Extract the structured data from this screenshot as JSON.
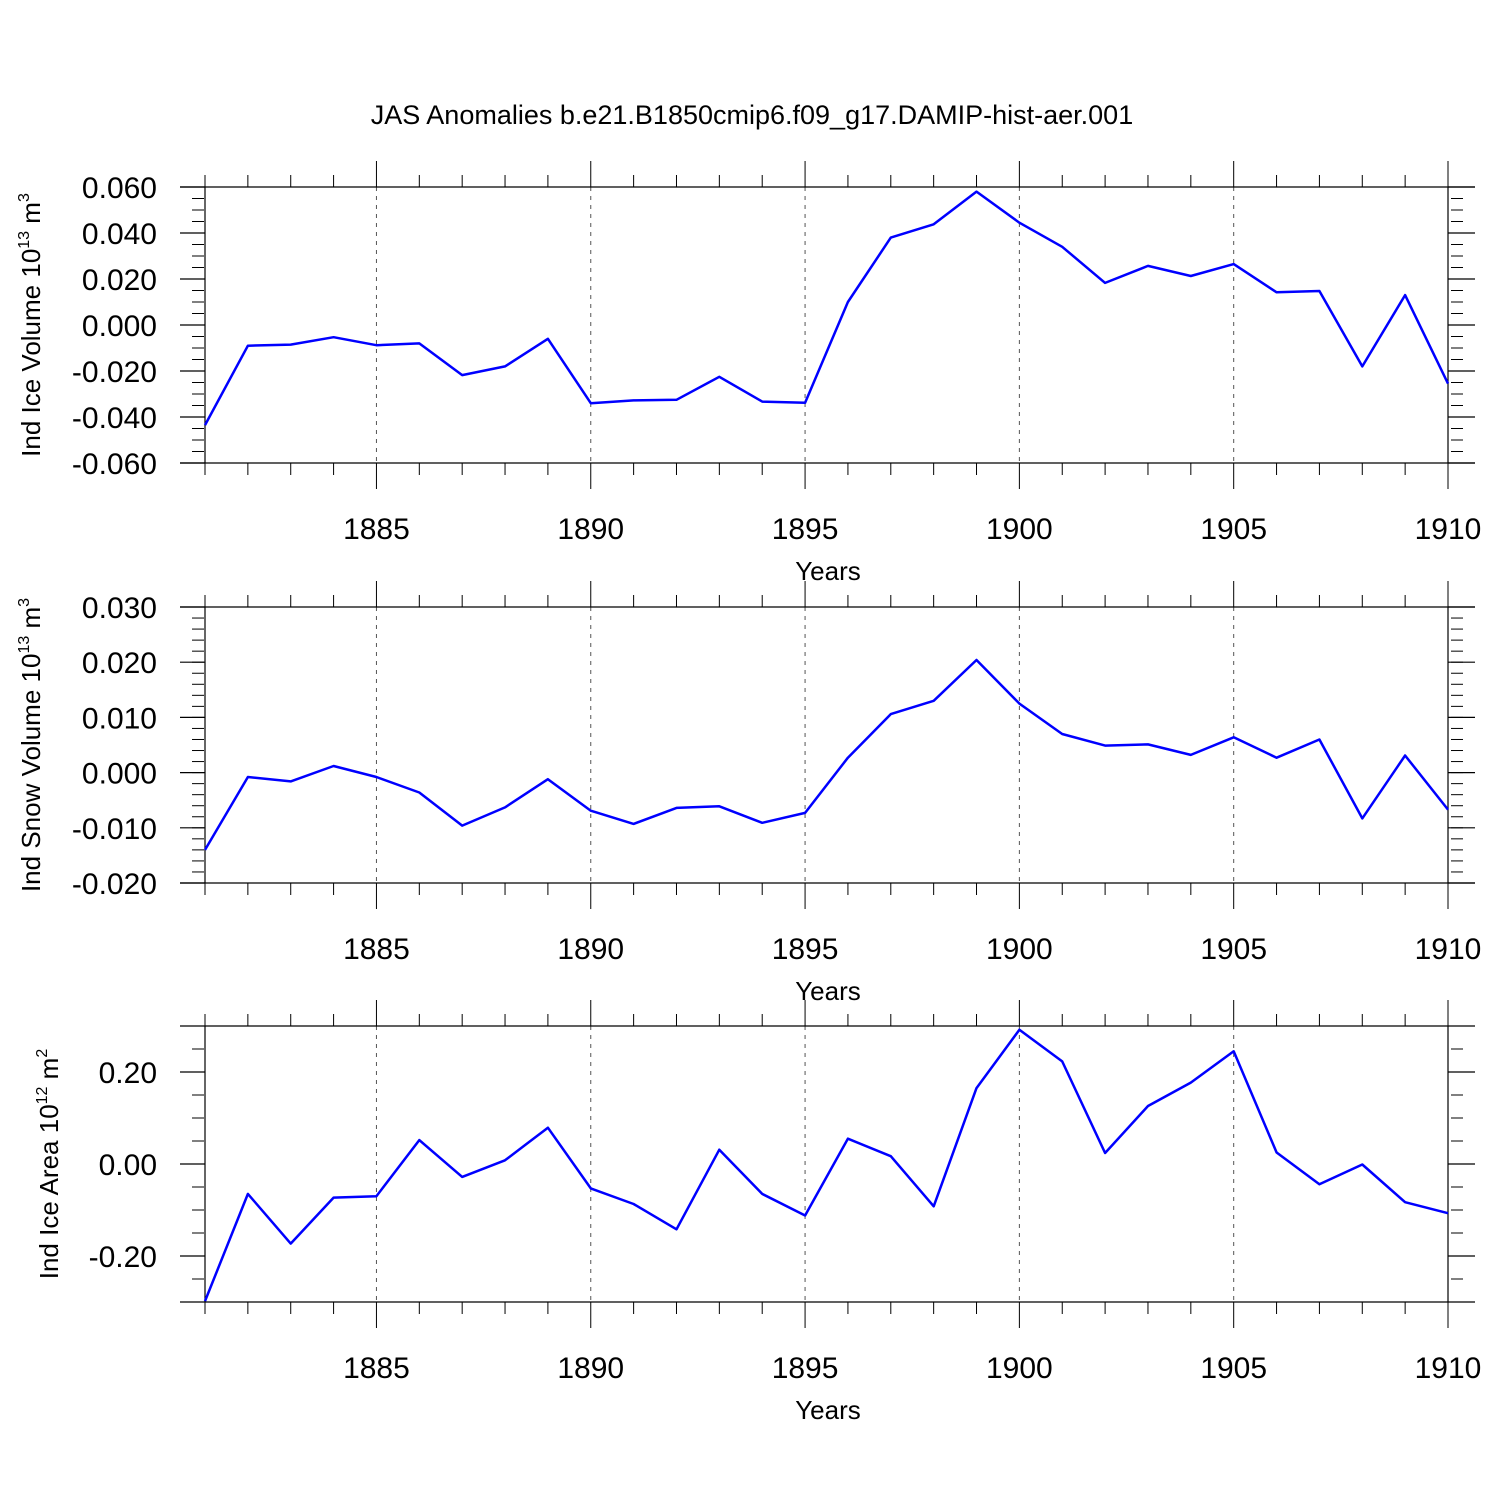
{
  "title": "JAS Anomalies b.e21.B1850cmip6.f09_g17.DAMIP-hist-aer.001",
  "line_color": "#0000ff",
  "chart_data": [
    {
      "type": "line",
      "ylabel": "Ind Ice Volume 10",
      "ylabel_sup": "13",
      "ylabel_unit": " m",
      "ylabel_unit_sup": "3",
      "xlabel": "Years",
      "xlim": [
        1881,
        1910
      ],
      "ylim": [
        -0.06,
        0.06
      ],
      "ytick_values": [
        -0.06,
        -0.04,
        -0.02,
        0.0,
        0.02,
        0.04,
        0.06
      ],
      "ytick_labels": [
        "-0.060",
        "-0.040",
        "-0.020",
        "0.000",
        "0.020",
        "0.040",
        "0.060"
      ],
      "yminor_step": 0.005,
      "xtick_values": [
        1885,
        1890,
        1895,
        1900,
        1905,
        1910
      ],
      "xtick_labels": [
        "1885",
        "1890",
        "1895",
        "1900",
        "1905",
        "1910"
      ],
      "grid": "vertical dashed at labeled years",
      "x": [
        1881,
        1882,
        1883,
        1884,
        1885,
        1886,
        1887,
        1888,
        1889,
        1890,
        1891,
        1892,
        1893,
        1894,
        1895,
        1896,
        1897,
        1898,
        1899,
        1900,
        1901,
        1902,
        1903,
        1904,
        1905,
        1906,
        1907,
        1908,
        1909,
        1910
      ],
      "series": [
        {
          "values": [
            -0.0435,
            -0.009,
            -0.0085,
            -0.0053,
            -0.0088,
            -0.008,
            -0.0218,
            -0.018,
            -0.006,
            -0.034,
            -0.0328,
            -0.0325,
            -0.0225,
            -0.0333,
            -0.0338,
            0.01,
            0.038,
            0.0438,
            0.058,
            0.0445,
            0.034,
            0.0183,
            0.0257,
            0.0213,
            0.0265,
            0.0142,
            0.0148,
            -0.018,
            0.013,
            -0.0255
          ]
        }
      ]
    },
    {
      "type": "line",
      "ylabel": "Ind Snow Volume 10",
      "ylabel_sup": "13",
      "ylabel_unit": " m",
      "ylabel_unit_sup": "3",
      "xlabel": "Years",
      "xlim": [
        1881,
        1910
      ],
      "ylim": [
        -0.02,
        0.03
      ],
      "ytick_values": [
        -0.02,
        -0.01,
        0.0,
        0.01,
        0.02,
        0.03
      ],
      "ytick_labels": [
        "-0.020",
        "-0.010",
        "0.000",
        "0.010",
        "0.020",
        "0.030"
      ],
      "yminor_step": 0.002,
      "xtick_values": [
        1885,
        1890,
        1895,
        1900,
        1905,
        1910
      ],
      "xtick_labels": [
        "1885",
        "1890",
        "1895",
        "1900",
        "1905",
        "1910"
      ],
      "grid": "vertical dashed at labeled years",
      "x": [
        1881,
        1882,
        1883,
        1884,
        1885,
        1886,
        1887,
        1888,
        1889,
        1890,
        1891,
        1892,
        1893,
        1894,
        1895,
        1896,
        1897,
        1898,
        1899,
        1900,
        1901,
        1902,
        1903,
        1904,
        1905,
        1906,
        1907,
        1908,
        1909,
        1910
      ],
      "series": [
        {
          "values": [
            -0.014,
            -0.0008,
            -0.0016,
            0.0012,
            -0.0008,
            -0.0036,
            -0.0096,
            -0.0063,
            -0.0012,
            -0.0069,
            -0.0093,
            -0.0064,
            -0.0061,
            -0.0091,
            -0.0073,
            0.0027,
            0.0106,
            0.013,
            0.0204,
            0.0125,
            0.007,
            0.0049,
            0.0051,
            0.0032,
            0.0064,
            0.0027,
            0.006,
            -0.0083,
            0.0031,
            -0.0067
          ]
        }
      ]
    },
    {
      "type": "line",
      "ylabel": "Ind Ice Area 10",
      "ylabel_sup": "12",
      "ylabel_unit": " m",
      "ylabel_unit_sup": "2",
      "xlabel": "Years",
      "xlim": [
        1881,
        1910
      ],
      "ylim": [
        -0.3,
        0.3
      ],
      "ytick_values": [
        -0.2,
        0.0,
        0.2
      ],
      "ytick_labels": [
        "-0.20",
        "0.00",
        "0.20"
      ],
      "yminor_step": 0.05,
      "xtick_values": [
        1885,
        1890,
        1895,
        1900,
        1905,
        1910
      ],
      "xtick_labels": [
        "1885",
        "1890",
        "1895",
        "1900",
        "1905",
        "1910"
      ],
      "grid": "vertical dashed at labeled years",
      "x": [
        1881,
        1882,
        1883,
        1884,
        1885,
        1886,
        1887,
        1888,
        1889,
        1890,
        1891,
        1892,
        1893,
        1894,
        1895,
        1896,
        1897,
        1898,
        1899,
        1900,
        1901,
        1902,
        1903,
        1904,
        1905,
        1906,
        1907,
        1908,
        1909,
        1910
      ],
      "series": [
        {
          "values": [
            -0.298,
            -0.065,
            -0.173,
            -0.073,
            -0.07,
            0.052,
            -0.028,
            0.008,
            0.079,
            -0.053,
            -0.087,
            -0.142,
            0.031,
            -0.065,
            -0.112,
            0.055,
            0.017,
            -0.092,
            0.165,
            0.292,
            0.223,
            0.024,
            0.126,
            0.177,
            0.245,
            0.025,
            -0.044,
            -0.001,
            -0.083,
            -0.107
          ]
        }
      ]
    }
  ]
}
